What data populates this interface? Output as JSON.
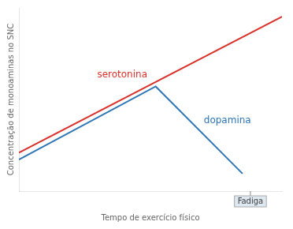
{
  "chart_data": {
    "type": "line",
    "xlabel": "Tempo de exercício físico",
    "ylabel": "Concentração de monoaminas no SNC",
    "series": [
      {
        "name": "serotonina",
        "color": "#d9302a",
        "x": [
          0.0,
          1.0
        ],
        "values": [
          0.22,
          1.0
        ]
      },
      {
        "name": "dopamina",
        "color": "#2e75b6",
        "x": [
          0.0,
          0.52,
          0.85
        ],
        "values": [
          0.18,
          0.6,
          0.1
        ]
      }
    ],
    "xlim": [
      0,
      1.0
    ],
    "ylim": [
      0,
      1.05
    ],
    "tick_labels": false,
    "grid": false,
    "annotations": [
      {
        "text": "Fadiga",
        "x": 0.88
      }
    ]
  }
}
